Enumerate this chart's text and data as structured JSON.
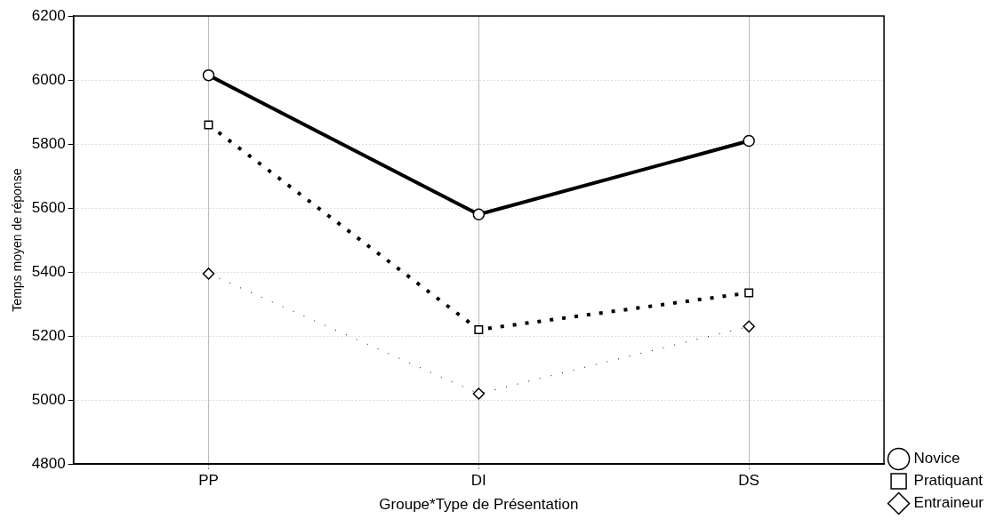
{
  "chart_data": {
    "type": "line",
    "xlabel": "Groupe*Type de Présentation",
    "ylabel": "Temps moyen de réponse",
    "categories": [
      "PP",
      "DI",
      "DS"
    ],
    "series": [
      {
        "name": "Novice",
        "color": "#000000",
        "values": [
          6015,
          5580,
          5810
        ],
        "marker": "circle",
        "line_style": "solid"
      },
      {
        "name": "Pratiquant",
        "color": "#000000",
        "values": [
          5860,
          5220,
          5335
        ],
        "marker": "square",
        "line_style": "dotted"
      },
      {
        "name": "Entraineur",
        "color": "#000000",
        "values": [
          5395,
          5020,
          5230
        ],
        "marker": "diamond",
        "line_style": "dashed"
      }
    ],
    "ylim": [
      4800,
      6200
    ],
    "yticks": [
      4800,
      5000,
      5200,
      5400,
      5600,
      5800,
      6000,
      6200
    ],
    "grid": true,
    "legend": "bottom right"
  }
}
